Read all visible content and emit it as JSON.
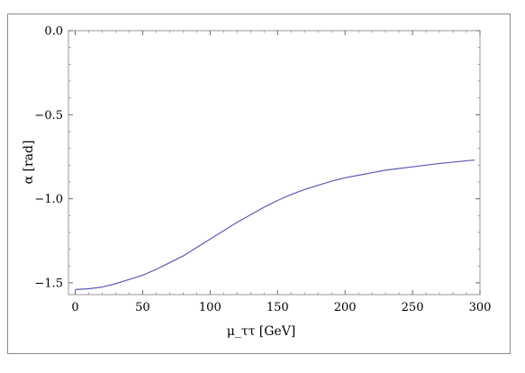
{
  "chart_data": {
    "type": "line",
    "title": "",
    "xlabel": "μ_ττ [GeV]",
    "ylabel": "α [rad]",
    "xlim": [
      -5,
      300
    ],
    "ylim": [
      -1.57,
      0.0
    ],
    "xticks": [
      0,
      50,
      100,
      150,
      200,
      250,
      300
    ],
    "yticks": [
      0.0,
      -0.5,
      -1.0,
      -1.5
    ],
    "ytick_labels": [
      "0.0",
      "−0.5",
      "−1.0",
      "−1.5"
    ],
    "grid": false,
    "series": [
      {
        "color": "#5b5bb4",
        "x": [
          0,
          10,
          20,
          30,
          40,
          50,
          60,
          70,
          80,
          90,
          100,
          110,
          120,
          130,
          140,
          150,
          160,
          170,
          180,
          190,
          200,
          210,
          220,
          230,
          240,
          250,
          260,
          270,
          280,
          290,
          296
        ],
        "y": [
          -1.54,
          -1.535,
          -1.525,
          -1.505,
          -1.48,
          -1.455,
          -1.42,
          -1.38,
          -1.34,
          -1.29,
          -1.24,
          -1.19,
          -1.14,
          -1.095,
          -1.05,
          -1.01,
          -0.975,
          -0.945,
          -0.92,
          -0.895,
          -0.875,
          -0.86,
          -0.845,
          -0.83,
          -0.82,
          -0.81,
          -0.8,
          -0.79,
          -0.782,
          -0.774,
          -0.77
        ]
      }
    ]
  }
}
